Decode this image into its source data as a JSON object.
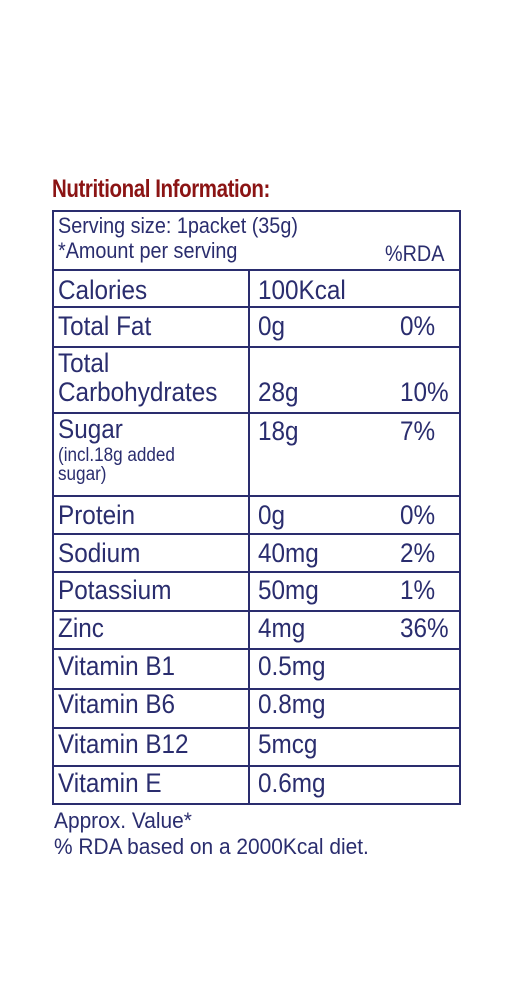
{
  "title": "Nutritional Information:",
  "header": {
    "serving_size": "Serving size: 1packet (35g)",
    "amount_per_serving": "*Amount per serving",
    "rda_label": "%RDA"
  },
  "rows": [
    {
      "name": "Calories",
      "amount": "100Kcal",
      "rda": ""
    },
    {
      "name": "Total Fat",
      "amount": "0g",
      "rda": "0%"
    },
    {
      "name_line1": "Total",
      "name_line2": "Carbohydrates",
      "amount": "28g",
      "rda": "10%"
    },
    {
      "name": "Sugar",
      "note_line1": "(incl.18g added",
      "note_line2": "sugar)",
      "amount": "18g",
      "rda": "7%"
    },
    {
      "name": "Protein",
      "amount": "0g",
      "rda": "0%"
    },
    {
      "name": "Sodium",
      "amount": "40mg",
      "rda": "2%"
    },
    {
      "name": "Potassium",
      "amount": "50mg",
      "rda": "1%"
    },
    {
      "name": "Zinc",
      "amount": "4mg",
      "rda": "36%"
    },
    {
      "name": "Vitamin B1",
      "amount": "0.5mg",
      "rda": ""
    },
    {
      "name": "Vitamin B6",
      "amount": "0.8mg",
      "rda": ""
    },
    {
      "name": "Vitamin B12",
      "amount": "5mcg",
      "rda": ""
    },
    {
      "name": "Vitamin E",
      "amount": "0.6mg",
      "rda": ""
    }
  ],
  "footnotes": {
    "approx": "Approx. Value*",
    "rda_basis": "% RDA based on a 2000Kcal diet."
  }
}
